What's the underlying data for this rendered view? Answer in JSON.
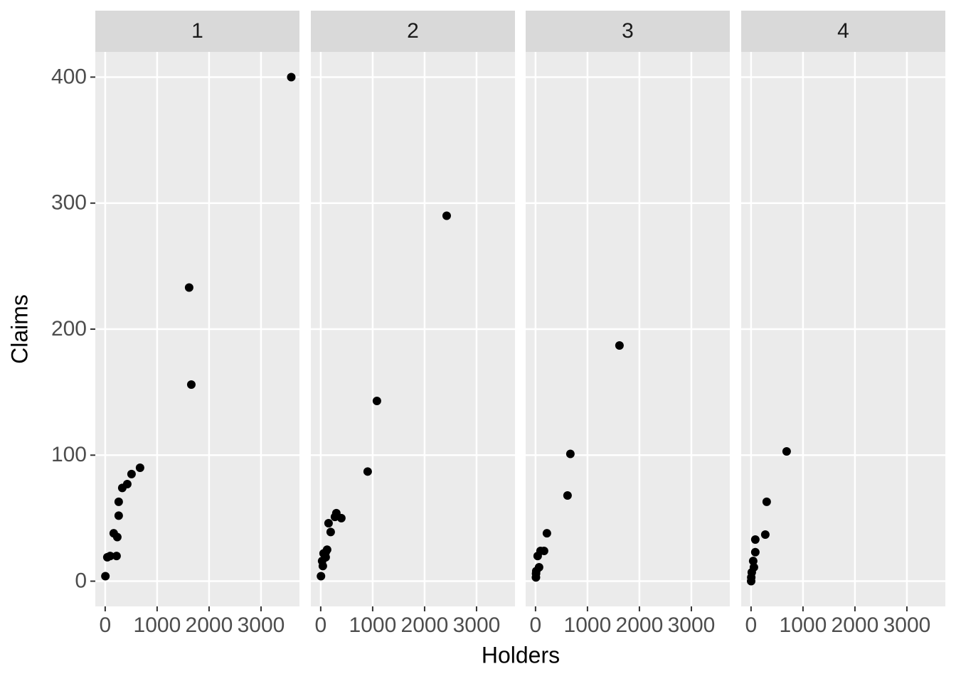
{
  "chart_data": {
    "type": "scatter",
    "x_label": "Holders",
    "y_label": "Claims",
    "xlim": [
      -190,
      3740
    ],
    "ylim": [
      -20,
      420
    ],
    "xticks": [
      0,
      1000,
      2000,
      3000
    ],
    "yticks": [
      0,
      100,
      200,
      300,
      400
    ],
    "grid": true,
    "color": "#000000",
    "panels": [
      {
        "label": "1",
        "x": [
          3582,
          1616,
          1658,
          671,
          507,
          425,
          329,
          260,
          260,
          164,
          233,
          219,
          96,
          41,
          4
        ],
        "y": [
          400,
          233,
          156,
          90,
          85,
          77,
          74,
          63,
          52,
          38,
          35,
          20,
          20,
          19,
          4
        ]
      },
      {
        "label": "2",
        "x": [
          2425,
          1082,
          904,
          301,
          274,
          397,
          151,
          192,
          123,
          96,
          55,
          96,
          27,
          41,
          5
        ],
        "y": [
          290,
          143,
          87,
          54,
          51,
          50,
          46,
          39,
          25,
          23,
          22,
          19,
          16,
          12,
          4
        ]
      },
      {
        "label": "3",
        "x": [
          1616,
          671,
          616,
          219,
          164,
          96,
          41,
          68,
          14,
          10,
          8
        ],
        "y": [
          187,
          101,
          68,
          38,
          24,
          24,
          20,
          11,
          8,
          6,
          3
        ]
      },
      {
        "label": "4",
        "x": [
          685,
          301,
          274,
          82,
          82,
          55,
          41,
          14,
          4,
          2
        ],
        "y": [
          103,
          63,
          37,
          33,
          23,
          11,
          16,
          7,
          3,
          0
        ]
      }
    ]
  }
}
